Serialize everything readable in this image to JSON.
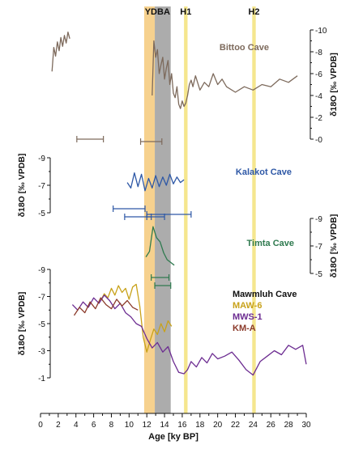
{
  "chart_data": {
    "type": "line",
    "xaxis": {
      "label": "Age [ky BP]",
      "min": 0,
      "max": 30,
      "ticks": [
        0,
        2,
        4,
        6,
        8,
        10,
        12,
        14,
        16,
        18,
        20,
        22,
        24,
        26,
        28,
        30
      ]
    },
    "bands": [
      {
        "label": "YD",
        "from": 11.7,
        "to": 12.9,
        "color": "#f5c97a"
      },
      {
        "label": "BA",
        "from": 12.9,
        "to": 14.7,
        "color": "#9e9e9e"
      },
      {
        "label": "H1",
        "from": 16.2,
        "to": 16.6,
        "color": "#f3e27a"
      },
      {
        "label": "H2",
        "from": 23.9,
        "to": 24.3,
        "color": "#f3e27a"
      }
    ],
    "panels": [
      {
        "name": "Bittoo Cave",
        "color": "#7d6a5c",
        "axis": {
          "side": "right",
          "label": "δ18O [‰ VPDB]",
          "min": -10,
          "max": 0,
          "ticks": [
            "-10",
            "-8",
            "-6",
            "-4",
            "-2",
            "-0"
          ]
        },
        "segments": [
          {
            "x": [
              1.3,
              1.5,
              1.7,
              1.9,
              2.1,
              2.3,
              2.5,
              2.7,
              2.9,
              3.1,
              3.3
            ],
            "y": [
              -6.2,
              -8.4,
              -7.6,
              -8.9,
              -8.1,
              -9.3,
              -8.5,
              -9.5,
              -8.8,
              -9.8,
              -9.2
            ]
          },
          {
            "x": [
              12.6,
              12.8,
              13.0,
              13.2,
              13.4,
              13.6,
              13.8,
              14.0,
              14.2,
              14.4,
              14.6,
              14.8,
              15.0,
              15.2,
              15.4,
              15.6,
              15.8,
              16.0,
              16.2,
              16.4,
              16.6,
              16.8,
              17.0,
              17.2,
              17.5,
              18.0,
              18.5,
              19.0,
              19.5,
              20.0,
              20.5,
              21.0,
              22.0,
              23.0,
              24.0,
              25.0,
              26.0,
              27.0,
              28.0,
              29.0
            ],
            "y": [
              -4.0,
              -9.0,
              -7.5,
              -8.2,
              -6.0,
              -6.8,
              -7.5,
              -5.5,
              -6.5,
              -7.2,
              -5.0,
              -6.0,
              -4.2,
              -3.8,
              -4.8,
              -3.2,
              -2.8,
              -3.5,
              -3.0,
              -3.3,
              -4.0,
              -5.0,
              -5.4,
              -4.8,
              -5.8,
              -4.5,
              -5.2,
              -4.8,
              -6.0,
              -5.0,
              -5.5,
              -4.8,
              -4.3,
              -4.8,
              -4.5,
              -5.0,
              -4.8,
              -5.5,
              -5.2,
              -5.8
            ]
          }
        ],
        "errorbars": [
          {
            "center": 5.6,
            "halfwidth": 1.5
          },
          {
            "center": 12.5,
            "halfwidth": 1.2
          }
        ]
      },
      {
        "name": "Kalakot Cave",
        "color": "#2e58a6",
        "axis": {
          "side": "left",
          "label": "δ18O [‰ VPDB]",
          "min": -9,
          "max": -5,
          "ticks": [
            "-9",
            "-7",
            "-5"
          ]
        },
        "segments": [
          {
            "x": [
              9.8,
              10.2,
              10.6,
              11.0,
              11.4,
              11.8,
              12.2,
              12.6,
              13.0,
              13.4,
              13.8,
              14.2,
              14.6,
              15.0,
              15.4,
              15.8,
              16.2
            ],
            "y": [
              -7.2,
              -6.8,
              -7.9,
              -6.9,
              -7.8,
              -6.6,
              -7.5,
              -6.8,
              -7.7,
              -6.9,
              -7.6,
              -7.0,
              -7.8,
              -7.1,
              -7.6,
              -7.2,
              -7.4
            ]
          }
        ],
        "errorbars": [
          {
            "center": 10.0,
            "halfwidth": 1.8
          },
          {
            "center": 11.0,
            "halfwidth": 1.5
          },
          {
            "center": 14.5,
            "halfwidth": 2.5
          },
          {
            "center": 13.0,
            "halfwidth": 1.0
          }
        ]
      },
      {
        "name": "Timta Cave",
        "color": "#2f7a4f",
        "axis": {
          "side": "right",
          "label": "δ18O [‰ VPDB]",
          "min": -9,
          "max": -5,
          "ticks": [
            "-9",
            "-7",
            "-5"
          ]
        },
        "segments": [
          {
            "x": [
              11.9,
              12.3,
              12.7,
              13.1,
              13.5,
              13.9,
              14.3,
              14.7,
              15.1
            ],
            "y": [
              -6.2,
              -6.6,
              -8.4,
              -7.6,
              -7.3,
              -6.5,
              -6.0,
              -5.8,
              -5.6
            ]
          }
        ],
        "errorbars": [
          {
            "center": 13.5,
            "halfwidth": 1.0
          },
          {
            "center": 13.8,
            "halfwidth": 0.9
          }
        ]
      },
      {
        "name": "Mawmluh Cave",
        "axis": {
          "side": "left",
          "label": "δ18O [‰ VPDB]",
          "min": -9,
          "max": -1,
          "ticks": [
            "-9",
            "-7",
            "-5",
            "-3",
            "-1"
          ]
        },
        "series": [
          {
            "name": "MAW-6",
            "color": "#c8a21a",
            "x": [
              6.8,
              7.2,
              7.6,
              8.0,
              8.4,
              8.8,
              9.2,
              9.6,
              10.0,
              10.4,
              10.8,
              11.2,
              11.6,
              12.0,
              12.4,
              12.8,
              13.2,
              13.6,
              14.0,
              14.4,
              14.8
            ],
            "y": [
              -6.7,
              -7.2,
              -6.9,
              -7.6,
              -7.1,
              -7.8,
              -7.3,
              -7.6,
              -6.8,
              -7.7,
              -7.9,
              -6.3,
              -4.0,
              -2.9,
              -3.8,
              -4.6,
              -4.2,
              -5.0,
              -4.4,
              -5.2,
              -4.8
            ]
          },
          {
            "name": "MWS-1",
            "color": "#6c2c91",
            "x": [
              3.6,
              4.2,
              4.8,
              5.4,
              6.0,
              6.6,
              7.2,
              7.8,
              8.4,
              9.0,
              9.6,
              10.2,
              10.8,
              11.4,
              12.0,
              12.6,
              13.2,
              13.8,
              14.4,
              15.0,
              15.6,
              16.2,
              16.6,
              17.0,
              17.6,
              18.2,
              18.8,
              19.4,
              20.0,
              20.8,
              21.6,
              22.4,
              23.2,
              24.0,
              24.8,
              25.6,
              26.4,
              27.2,
              28.0,
              28.8,
              29.6,
              30.0
            ],
            "y": [
              -6.4,
              -6.0,
              -6.6,
              -6.2,
              -6.9,
              -6.5,
              -7.1,
              -6.7,
              -6.1,
              -6.5,
              -5.8,
              -5.5,
              -5.0,
              -4.8,
              -3.9,
              -3.2,
              -3.6,
              -2.9,
              -3.3,
              -2.2,
              -1.4,
              -1.3,
              -1.6,
              -2.2,
              -1.8,
              -2.5,
              -2.1,
              -2.8,
              -2.4,
              -2.6,
              -2.9,
              -2.3,
              -1.6,
              -1.2,
              -2.2,
              -2.6,
              -3.0,
              -2.7,
              -3.4,
              -3.1,
              -3.4,
              -2.0
            ]
          },
          {
            "name": "KM-A",
            "color": "#8b3a2a",
            "x": [
              3.8,
              4.4,
              5.0,
              5.6,
              6.2,
              6.8,
              7.4,
              8.0,
              8.6,
              9.2,
              9.8,
              10.4,
              11.0
            ],
            "y": [
              -5.6,
              -6.2,
              -5.8,
              -6.6,
              -6.1,
              -6.9,
              -6.4,
              -6.1,
              -6.8,
              -6.3,
              -6.7,
              -6.2,
              -6.0
            ]
          }
        ]
      }
    ]
  }
}
